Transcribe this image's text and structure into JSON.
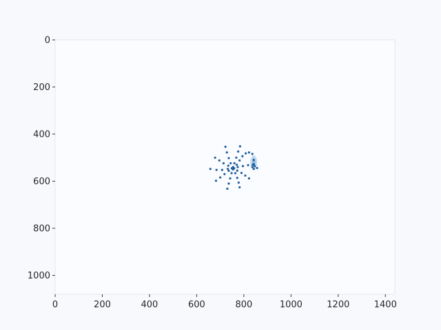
{
  "chart_data": {
    "type": "scatter",
    "title": "",
    "xlabel": "",
    "ylabel": "",
    "xlim": [
      0,
      1440
    ],
    "ylim": [
      1080,
      0
    ],
    "y_inverted": true,
    "grid": false,
    "legend": "none",
    "x_ticks": [
      0,
      200,
      400,
      600,
      800,
      1000,
      1200,
      1400
    ],
    "y_ticks": [
      0,
      200,
      400,
      600,
      800,
      1000
    ],
    "colors": {
      "background": "#f7f9fc",
      "plot_background": "#fbfcff",
      "spine": "#e8e8e8",
      "point": "#1f5f9e",
      "highlight": "#5a9fd4"
    },
    "center": {
      "x": 754,
      "y": 545
    },
    "highlight_region": {
      "x": 842,
      "y": 520
    },
    "series": [
      {
        "values": [
          {
            "x": 754,
            "y": 545
          },
          {
            "x": 749,
            "y": 545
          },
          {
            "x": 759,
            "y": 545
          },
          {
            "x": 754,
            "y": 540
          },
          {
            "x": 754,
            "y": 550
          },
          {
            "x": 770,
            "y": 530
          },
          {
            "x": 782,
            "y": 512
          },
          {
            "x": 794,
            "y": 494
          },
          {
            "x": 808,
            "y": 482
          },
          {
            "x": 822,
            "y": 478
          },
          {
            "x": 836,
            "y": 484
          },
          {
            "x": 774,
            "y": 540
          },
          {
            "x": 796,
            "y": 536
          },
          {
            "x": 818,
            "y": 532
          },
          {
            "x": 838,
            "y": 530
          },
          {
            "x": 856,
            "y": 544
          },
          {
            "x": 772,
            "y": 555
          },
          {
            "x": 790,
            "y": 565
          },
          {
            "x": 806,
            "y": 576
          },
          {
            "x": 822,
            "y": 588
          },
          {
            "x": 764,
            "y": 566
          },
          {
            "x": 772,
            "y": 586
          },
          {
            "x": 778,
            "y": 606
          },
          {
            "x": 782,
            "y": 626
          },
          {
            "x": 748,
            "y": 566
          },
          {
            "x": 742,
            "y": 588
          },
          {
            "x": 736,
            "y": 610
          },
          {
            "x": 730,
            "y": 632
          },
          {
            "x": 736,
            "y": 556
          },
          {
            "x": 718,
            "y": 570
          },
          {
            "x": 700,
            "y": 584
          },
          {
            "x": 682,
            "y": 598
          },
          {
            "x": 732,
            "y": 548
          },
          {
            "x": 708,
            "y": 552
          },
          {
            "x": 684,
            "y": 552
          },
          {
            "x": 658,
            "y": 548
          },
          {
            "x": 734,
            "y": 534
          },
          {
            "x": 714,
            "y": 524
          },
          {
            "x": 696,
            "y": 512
          },
          {
            "x": 678,
            "y": 500
          },
          {
            "x": 744,
            "y": 524
          },
          {
            "x": 736,
            "y": 502
          },
          {
            "x": 728,
            "y": 478
          },
          {
            "x": 722,
            "y": 454
          },
          {
            "x": 760,
            "y": 524
          },
          {
            "x": 768,
            "y": 500
          },
          {
            "x": 776,
            "y": 474
          },
          {
            "x": 784,
            "y": 452
          },
          {
            "x": 842,
            "y": 510
          },
          {
            "x": 842,
            "y": 528
          },
          {
            "x": 842,
            "y": 548
          },
          {
            "x": 836,
            "y": 540
          },
          {
            "x": 846,
            "y": 536
          }
        ]
      }
    ]
  }
}
